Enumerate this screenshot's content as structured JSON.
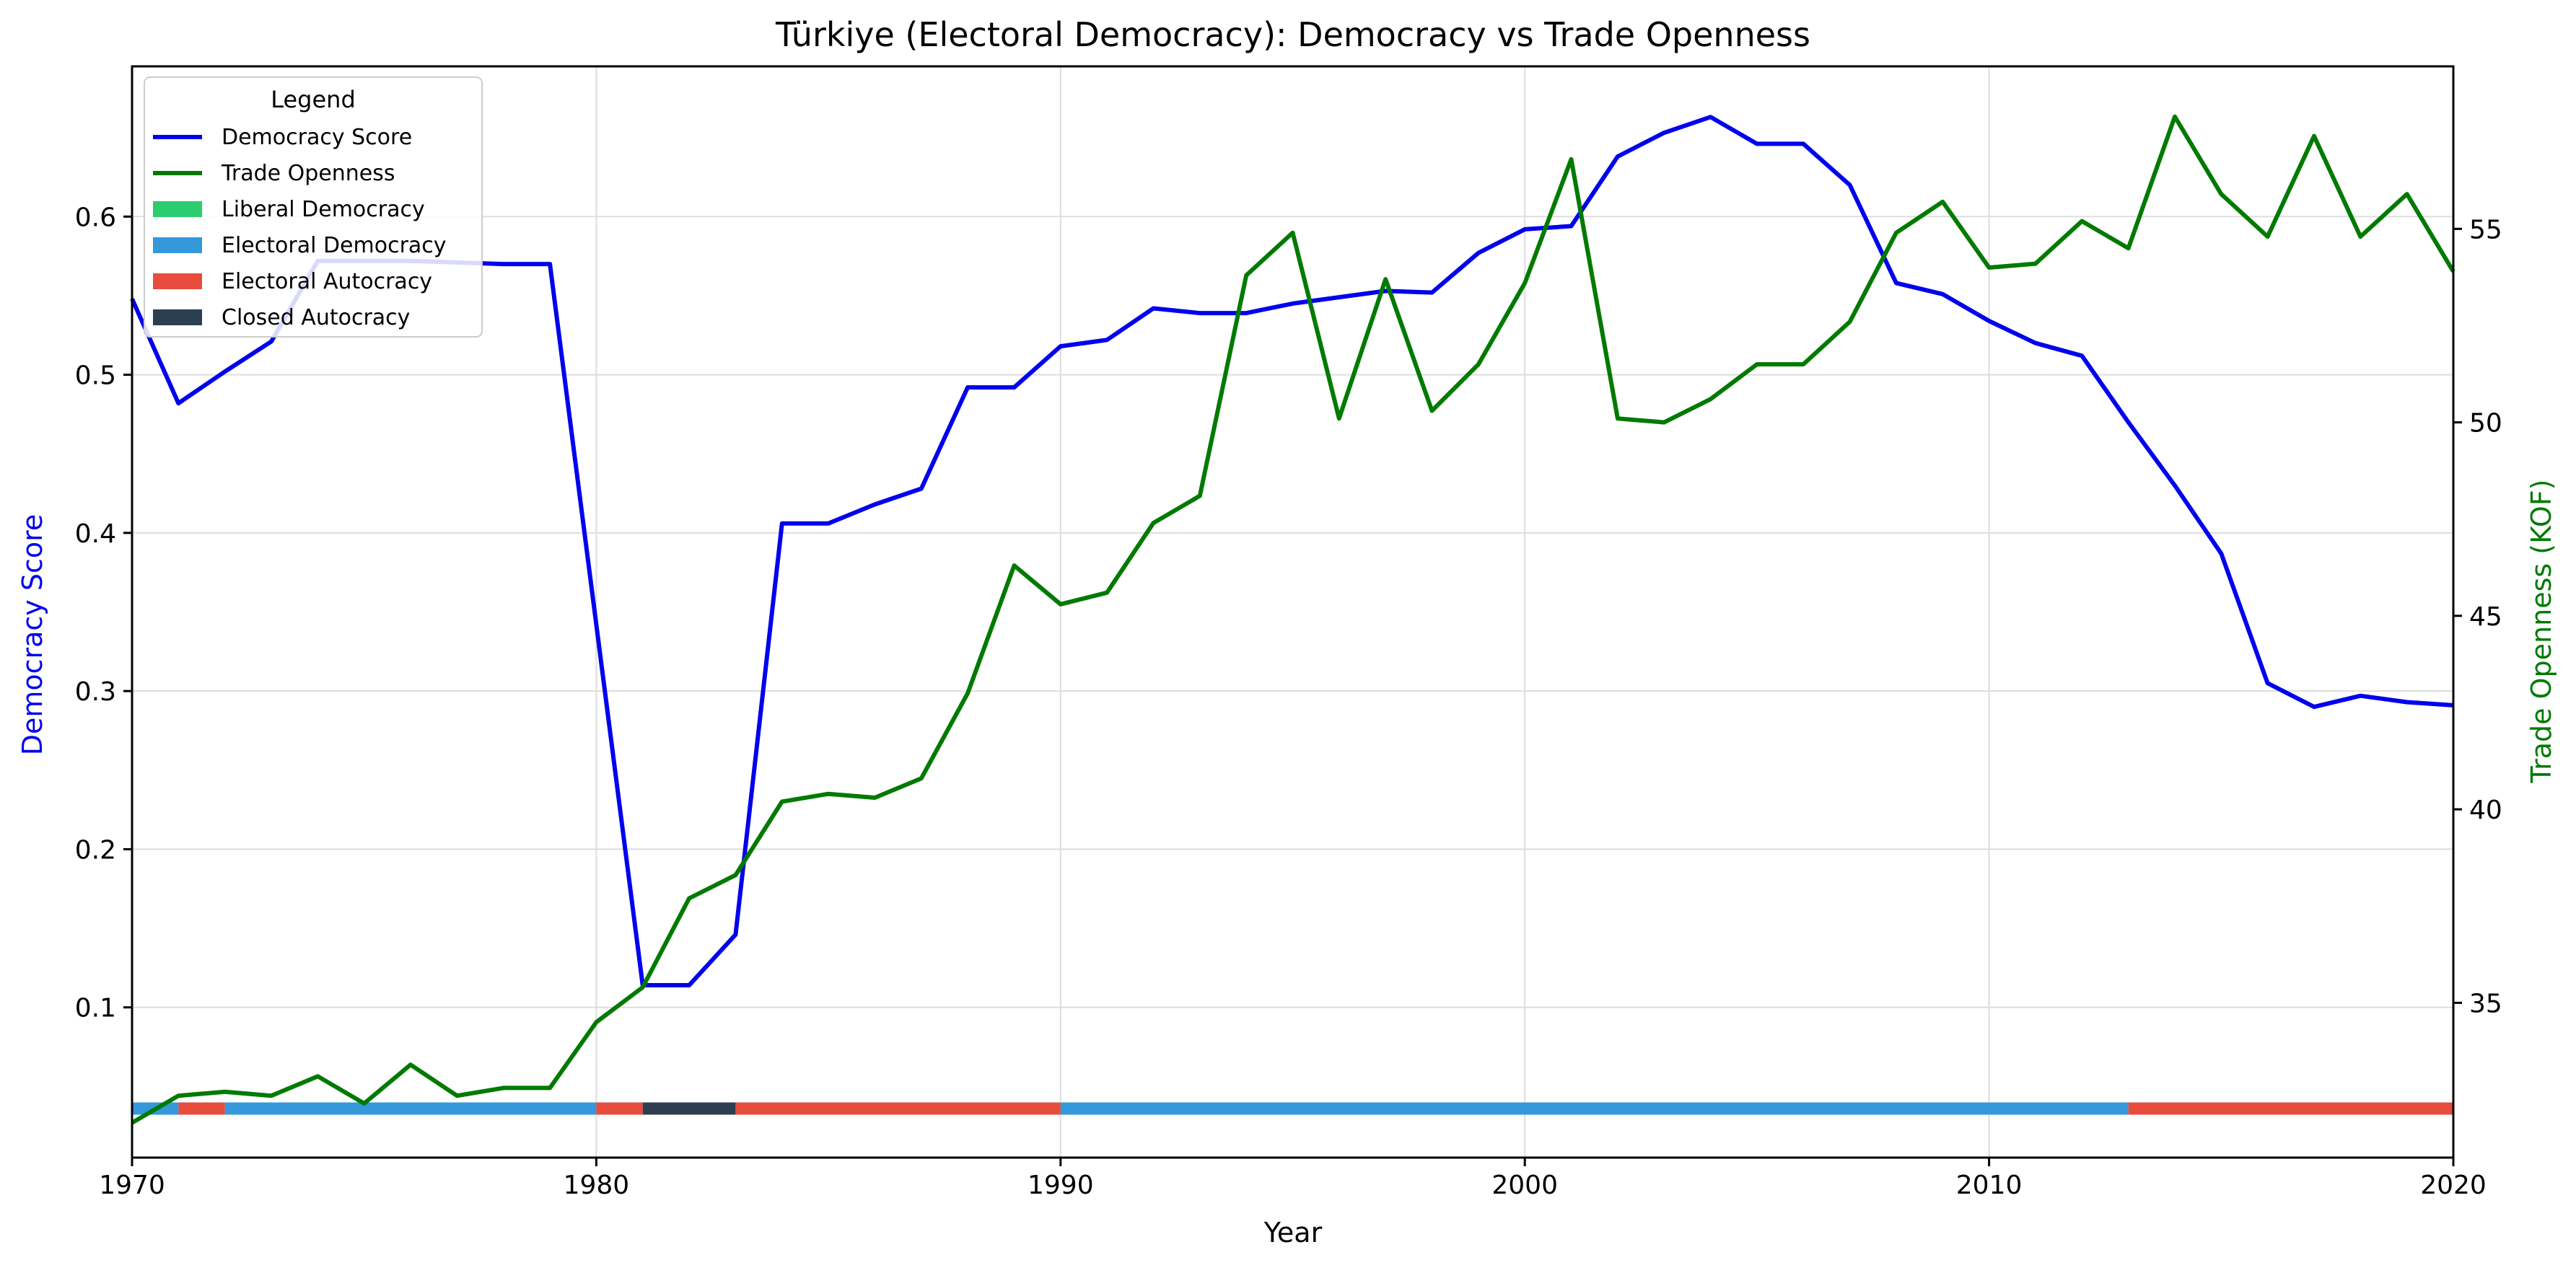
{
  "chart_data": {
    "type": "line",
    "title": "Türkiye (Electoral Democracy): Democracy vs Trade Openness",
    "xlabel": "Year",
    "ylabel_left": "Democracy Score",
    "ylabel_right": "Trade Openness (KOF)",
    "xlim": [
      1970,
      2020
    ],
    "ylim_left": [
      0.005,
      0.695
    ],
    "ylim_right": [
      31,
      59.2
    ],
    "x_ticks": [
      1970,
      1980,
      1990,
      2000,
      2010,
      2020
    ],
    "y_ticks_left": [
      0.1,
      0.2,
      0.3,
      0.4,
      0.5,
      0.6
    ],
    "y_ticks_right": [
      35,
      40,
      45,
      50,
      55
    ],
    "grid": true,
    "legend_title": "Legend",
    "legend_position": "top-left",
    "series": [
      {
        "name": "Democracy Score",
        "axis": "left",
        "color": "#0000ee",
        "x": [
          1970,
          1971,
          1972,
          1973,
          1974,
          1975,
          1976,
          1977,
          1978,
          1979,
          1980,
          1981,
          1982,
          1983,
          1984,
          1985,
          1986,
          1987,
          1988,
          1989,
          1990,
          1991,
          1992,
          1993,
          1994,
          1995,
          1996,
          1997,
          1998,
          1999,
          2000,
          2001,
          2002,
          2003,
          2004,
          2005,
          2006,
          2007,
          2008,
          2009,
          2010,
          2011,
          2012,
          2013,
          2014,
          2015,
          2016,
          2017,
          2018,
          2019,
          2020
        ],
        "values": [
          0.548,
          0.482,
          0.502,
          0.521,
          0.572,
          0.572,
          0.572,
          0.571,
          0.57,
          0.57,
          0.342,
          0.114,
          0.114,
          0.146,
          0.406,
          0.406,
          0.418,
          0.428,
          0.492,
          0.492,
          0.518,
          0.522,
          0.542,
          0.539,
          0.539,
          0.545,
          0.549,
          0.553,
          0.552,
          0.577,
          0.592,
          0.594,
          0.638,
          0.653,
          0.663,
          0.646,
          0.646,
          0.62,
          0.558,
          0.551,
          0.534,
          0.52,
          0.512,
          0.47,
          0.43,
          0.387,
          0.305,
          0.29,
          0.297,
          0.293,
          0.291
        ]
      },
      {
        "name": "Trade Openness",
        "axis": "right",
        "color": "#007a00",
        "x": [
          1970,
          1971,
          1972,
          1973,
          1974,
          1975,
          1976,
          1977,
          1978,
          1979,
          1980,
          1981,
          1982,
          1983,
          1984,
          1985,
          1986,
          1987,
          1988,
          1989,
          1990,
          1991,
          1992,
          1993,
          1994,
          1995,
          1996,
          1997,
          1998,
          1999,
          2000,
          2001,
          2002,
          2003,
          2004,
          2005,
          2006,
          2007,
          2008,
          2009,
          2010,
          2011,
          2012,
          2013,
          2014,
          2015,
          2016,
          2017,
          2018,
          2019,
          2020
        ],
        "values": [
          31.9,
          32.6,
          32.7,
          32.6,
          33.1,
          32.4,
          33.4,
          32.6,
          32.8,
          32.8,
          34.5,
          35.4,
          37.7,
          38.3,
          40.2,
          40.4,
          40.3,
          40.8,
          43.0,
          46.3,
          45.3,
          45.6,
          47.4,
          48.1,
          53.8,
          54.9,
          50.1,
          53.7,
          50.3,
          51.5,
          53.6,
          56.8,
          50.1,
          50.0,
          50.6,
          51.5,
          51.5,
          52.6,
          54.9,
          55.7,
          54.0,
          54.1,
          55.2,
          54.5,
          57.9,
          55.9,
          54.8,
          57.4,
          54.8,
          55.9,
          53.9
        ]
      }
    ],
    "regime_bands": {
      "y_value": 0.036,
      "segments": [
        {
          "start": 1970,
          "end": 1971,
          "regime": "Electoral Democracy"
        },
        {
          "start": 1971,
          "end": 1972,
          "regime": "Electoral Autocracy"
        },
        {
          "start": 1972,
          "end": 1980,
          "regime": "Electoral Democracy"
        },
        {
          "start": 1980,
          "end": 1981,
          "regime": "Electoral Autocracy"
        },
        {
          "start": 1981,
          "end": 1983,
          "regime": "Closed Autocracy"
        },
        {
          "start": 1983,
          "end": 1990,
          "regime": "Electoral Autocracy"
        },
        {
          "start": 1990,
          "end": 2013,
          "regime": "Electoral Democracy"
        },
        {
          "start": 2013,
          "end": 2020,
          "regime": "Electoral Autocracy"
        }
      ]
    },
    "regime_colors": {
      "Liberal Democracy": "#2ecc71",
      "Electoral Democracy": "#3498db",
      "Electoral Autocracy": "#e74c3c",
      "Closed Autocracy": "#2c3e50"
    },
    "legend_entries": [
      {
        "label": "Democracy Score",
        "kind": "line",
        "color": "#0000ee"
      },
      {
        "label": "Trade Openness",
        "kind": "line",
        "color": "#007a00"
      },
      {
        "label": "Liberal Democracy",
        "kind": "patch",
        "color": "#2ecc71"
      },
      {
        "label": "Electoral Democracy",
        "kind": "patch",
        "color": "#3498db"
      },
      {
        "label": "Electoral Autocracy",
        "kind": "patch",
        "color": "#e74c3c"
      },
      {
        "label": "Closed Autocracy",
        "kind": "patch",
        "color": "#2c3e50"
      }
    ]
  }
}
